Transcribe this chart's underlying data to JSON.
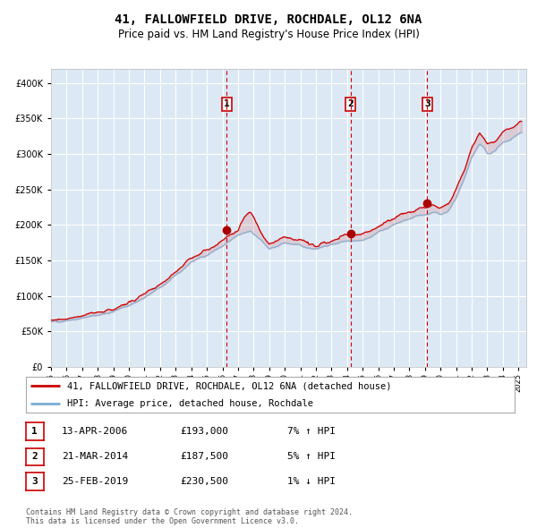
{
  "title": "41, FALLOWFIELD DRIVE, ROCHDALE, OL12 6NA",
  "subtitle": "Price paid vs. HM Land Registry's House Price Index (HPI)",
  "legend_line1": "41, FALLOWFIELD DRIVE, ROCHDALE, OL12 6NA (detached house)",
  "legend_line2": "HPI: Average price, detached house, Rochdale",
  "transactions": [
    {
      "num": 1,
      "date": "13-APR-2006",
      "price": 193000,
      "hpi_pct": "7% ↑ HPI"
    },
    {
      "num": 2,
      "date": "21-MAR-2014",
      "price": 187500,
      "hpi_pct": "5% ↑ HPI"
    },
    {
      "num": 3,
      "date": "25-FEB-2019",
      "price": 230500,
      "hpi_pct": "1% ↓ HPI"
    }
  ],
  "transaction_dates_decimal": [
    2006.28,
    2014.22,
    2019.15
  ],
  "transaction_prices": [
    193000,
    187500,
    230500
  ],
  "footer": "Contains HM Land Registry data © Crown copyright and database right 2024.\nThis data is licensed under the Open Government Licence v3.0.",
  "ylim": [
    0,
    420000
  ],
  "yticks": [
    0,
    50000,
    100000,
    150000,
    200000,
    250000,
    300000,
    350000,
    400000
  ],
  "background_color": "#dce9f5",
  "red_line_color": "#cc0000",
  "blue_line_color": "#7bafd4",
  "dashed_line_color": "#cc0000",
  "marker_color": "#aa0000",
  "grid_color": "#ffffff",
  "box_color": "#cc0000",
  "title_fontsize": 10,
  "subtitle_fontsize": 8.5,
  "axis_fontsize": 7,
  "legend_fontsize": 7.5,
  "table_fontsize": 8,
  "footer_fontsize": 6
}
